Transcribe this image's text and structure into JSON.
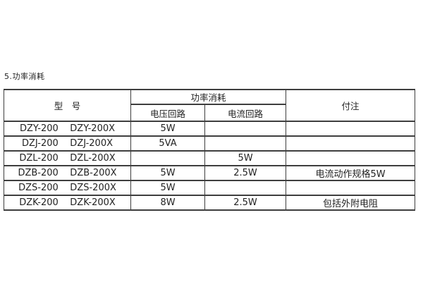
{
  "page": {
    "background_color": "#ffffff",
    "text_color": "#222222",
    "border_color": "#3e3e3e"
  },
  "title": "5.功率消耗",
  "table": {
    "header": {
      "model": "型　号",
      "power_group": "功率消耗",
      "voltage_circuit": "电压回路",
      "current_circuit": "电流回路",
      "notes": "付注"
    },
    "rows": [
      {
        "model": "DZY-200    DZY-200X",
        "voltage": "5W",
        "current": "",
        "notes": ""
      },
      {
        "model": "DZJ-200    DZJ-200X",
        "voltage": "5VA",
        "current": "",
        "notes": ""
      },
      {
        "model": "DZL-200    DZL-200X",
        "voltage": "",
        "current": "5W",
        "notes": ""
      },
      {
        "model": "DZB-200    DZB-200X",
        "voltage": "5W",
        "current": "2.5W",
        "notes": "电流动作规格5W"
      },
      {
        "model": "DZS-200    DZS-200X",
        "voltage": "5W",
        "current": "",
        "notes": ""
      },
      {
        "model": "DZK-200    DZK-200X",
        "voltage": "8W",
        "current": "2.5W",
        "notes": "包括外附电阻"
      }
    ]
  }
}
